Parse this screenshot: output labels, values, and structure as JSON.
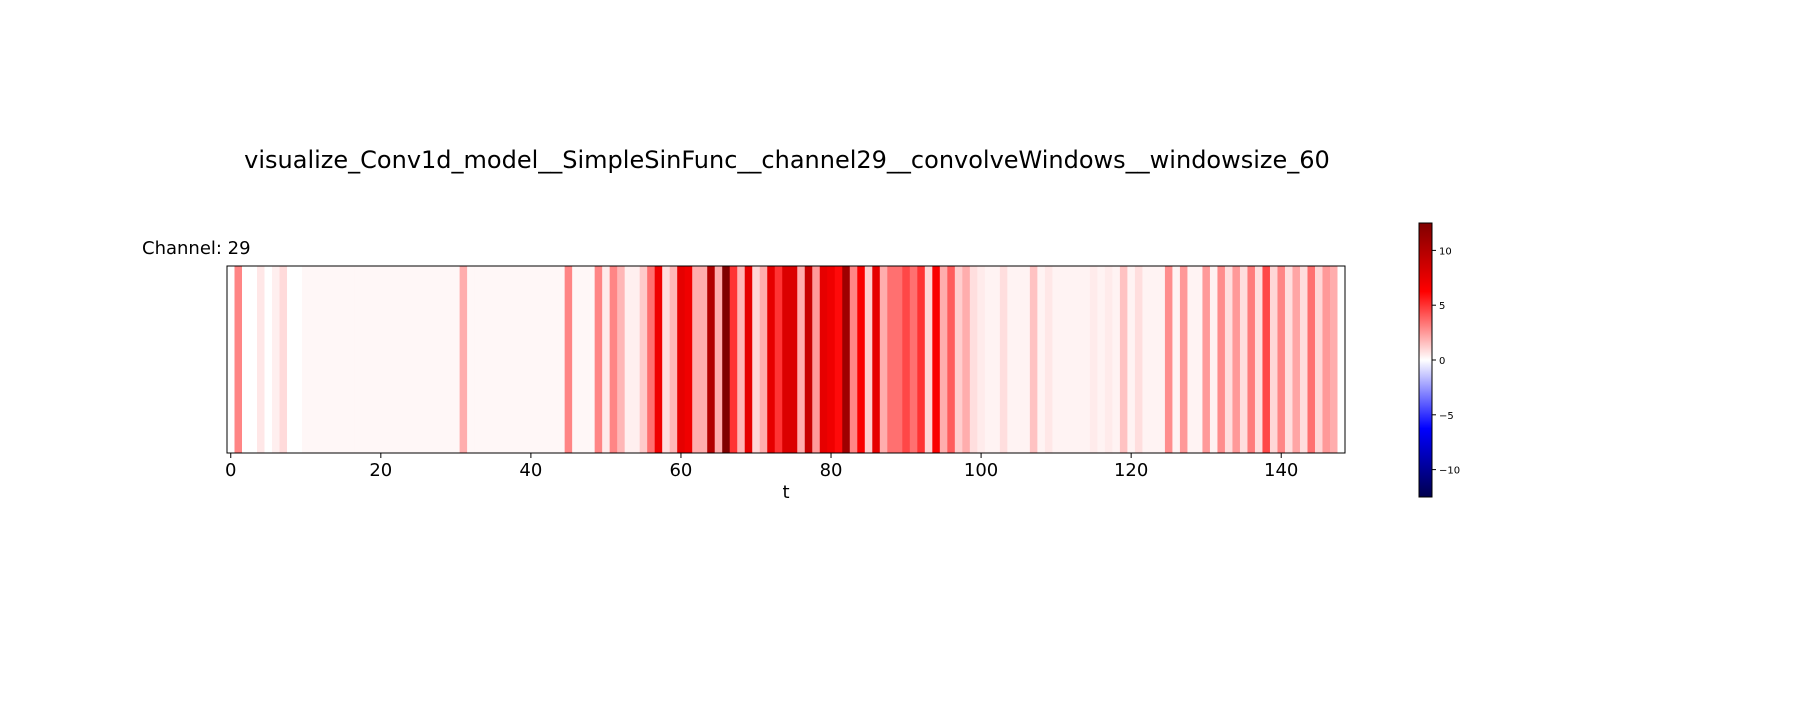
{
  "chart_data": {
    "type": "heatmap",
    "title": "visualize_Conv1d_model__SimpleSinFunc__channel29__convolveWindows__windowsize_60",
    "subtitle": "Channel: 29",
    "xlabel": "t",
    "ylabel": "",
    "xlim": [
      -0.5,
      148.5
    ],
    "xticks": [
      0,
      20,
      40,
      60,
      80,
      100,
      120,
      140
    ],
    "colormap": "seismic",
    "color_range": [
      -12.5,
      12.5
    ],
    "colorbar_ticks": [
      -10,
      -5,
      0,
      5,
      10
    ],
    "values": [
      0,
      3.0,
      0,
      0,
      0.6,
      0,
      0.4,
      0.9,
      0,
      0,
      0.2,
      0.2,
      0.2,
      0.2,
      0.2,
      0.2,
      0.2,
      0.2,
      0.2,
      0.2,
      0.2,
      0.2,
      0.2,
      0.2,
      0.2,
      0.2,
      0.2,
      0.2,
      0.2,
      0.2,
      0.2,
      2.0,
      0.2,
      0.2,
      0.2,
      0.2,
      0.2,
      0.2,
      0.2,
      0.2,
      0.2,
      0.2,
      0.2,
      0.2,
      0.2,
      3.0,
      0.2,
      0.2,
      0.2,
      3.0,
      0.5,
      3.0,
      1.8,
      0.4,
      0.4,
      1.3,
      3.5,
      7.0,
      0.8,
      1.8,
      7.5,
      7.0,
      2.0,
      2.0,
      10.0,
      2.0,
      12.5,
      5.0,
      1.8,
      7.5,
      1.0,
      2.0,
      7.5,
      5.0,
      8.0,
      8.0,
      2.0,
      9.0,
      2.5,
      7.5,
      7.0,
      6.0,
      11.0,
      3.0,
      6.5,
      1.2,
      7.5,
      2.0,
      3.5,
      3.5,
      4.5,
      3.5,
      5.0,
      1.0,
      6.5,
      2.0,
      4.0,
      1.2,
      2.0,
      0.8,
      0.5,
      0.3,
      0.3,
      0.8,
      0.3,
      0.3,
      0.3,
      1.5,
      0.3,
      0.6,
      0.3,
      0.3,
      0.3,
      0.3,
      0.3,
      0.5,
      0.3,
      0.5,
      0.3,
      1.5,
      0.3,
      0.8,
      0.3,
      0.3,
      0.3,
      2.8,
      0.3,
      2.5,
      0.3,
      0.3,
      2.5,
      0.3,
      2.8,
      0.8,
      2.5,
      0.8,
      3.2,
      0.8,
      4.5,
      1.0,
      3.0,
      0.8,
      2.2,
      0.8,
      3.5,
      1.0,
      2.5,
      2.0,
      0
    ]
  }
}
